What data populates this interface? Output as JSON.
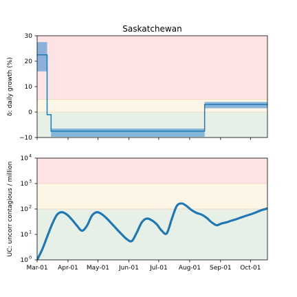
{
  "chart_data": [
    {
      "type": "line",
      "title": "Saskatchewan",
      "ylabel": "δ: daily growth (%)",
      "xlabel": "",
      "ylim": [
        -10,
        30
      ],
      "yticks": [
        "30",
        "20",
        "10",
        "0",
        "−10"
      ],
      "ytick_values": [
        30,
        20,
        10,
        0,
        -10
      ],
      "xlim": [
        "2020-03-01",
        "2020-10-18"
      ],
      "grid": false,
      "zones": [
        {
          "from": 5,
          "to": 30,
          "color": "#fde3e3"
        },
        {
          "from": 0,
          "to": 5,
          "color": "#fdf5e6"
        },
        {
          "from": -10,
          "to": 0,
          "color": "#e6f0e6"
        }
      ],
      "series": [
        {
          "x": [
            "2020-03-01",
            "2020-03-11",
            "2020-03-11",
            "2020-03-15",
            "2020-03-15",
            "2020-08-16",
            "2020-08-16",
            "2020-10-18"
          ],
          "values": [
            22.5,
            22.5,
            -1,
            -1,
            -7.5,
            -7.5,
            3,
            3
          ],
          "color": "#1f77b4",
          "band": [
            {
              "x0": "2020-03-01",
              "x1": "2020-03-11",
              "lo": 16,
              "hi": 27.5
            },
            {
              "x0": "2020-03-15",
              "x1": "2020-08-16",
              "lo": -9.7,
              "hi": -6.5
            },
            {
              "x0": "2020-08-16",
              "x1": "2020-10-18",
              "lo": 1.5,
              "hi": 4
            }
          ]
        }
      ]
    },
    {
      "type": "line",
      "title": "",
      "ylabel": "UC: uncorr contagious / million",
      "xlabel": "",
      "yscale": "log",
      "ylim": [
        1,
        10000
      ],
      "yticks": [
        "10",
        "10",
        "10",
        "10",
        "10"
      ],
      "ytick_exponents": [
        "4",
        "3",
        "2",
        "1",
        "0"
      ],
      "ytick_values": [
        10000,
        1000,
        100,
        10,
        1
      ],
      "xticks": [
        "Mar-01",
        "Apr-01",
        "May-01",
        "Jun-01",
        "Jul-01",
        "Aug-01",
        "Sep-01",
        "Oct-01"
      ],
      "xtick_values": [
        "2020-03-01",
        "2020-04-01",
        "2020-05-01",
        "2020-06-01",
        "2020-07-01",
        "2020-08-01",
        "2020-09-01",
        "2020-10-01"
      ],
      "xlim": [
        "2020-03-01",
        "2020-10-18"
      ],
      "grid": false,
      "zones": [
        {
          "from": 1000,
          "to": 10000,
          "color": "#fde3e3"
        },
        {
          "from": 100,
          "to": 1000,
          "color": "#fdf5e6"
        },
        {
          "from": 1,
          "to": 100,
          "color": "#e6f0e6"
        }
      ],
      "series": [
        {
          "x": [
            "2020-03-01",
            "2020-03-06",
            "2020-03-11",
            "2020-03-16",
            "2020-03-21",
            "2020-03-26",
            "2020-03-31",
            "2020-04-05",
            "2020-04-10",
            "2020-04-15",
            "2020-04-20",
            "2020-04-25",
            "2020-04-30",
            "2020-05-05",
            "2020-05-10",
            "2020-05-15",
            "2020-05-20",
            "2020-05-25",
            "2020-05-30",
            "2020-06-04",
            "2020-06-09",
            "2020-06-14",
            "2020-06-19",
            "2020-06-24",
            "2020-06-29",
            "2020-07-04",
            "2020-07-09",
            "2020-07-14",
            "2020-07-19",
            "2020-07-24",
            "2020-07-29",
            "2020-08-03",
            "2020-08-08",
            "2020-08-13",
            "2020-08-18",
            "2020-08-23",
            "2020-08-28",
            "2020-09-02",
            "2020-09-07",
            "2020-09-12",
            "2020-09-17",
            "2020-09-22",
            "2020-09-27",
            "2020-10-02",
            "2020-10-07",
            "2020-10-12",
            "2020-10-18"
          ],
          "values": [
            1,
            2.5,
            8,
            25,
            60,
            75,
            60,
            38,
            22,
            14,
            22,
            55,
            75,
            62,
            42,
            26,
            16,
            10,
            6.5,
            5.5,
            12,
            30,
            42,
            36,
            25,
            14,
            11,
            40,
            130,
            165,
            130,
            90,
            70,
            60,
            45,
            30,
            23,
            27,
            30,
            35,
            40,
            47,
            55,
            63,
            75,
            90,
            105
          ],
          "color": "#1f77b4"
        }
      ]
    }
  ]
}
